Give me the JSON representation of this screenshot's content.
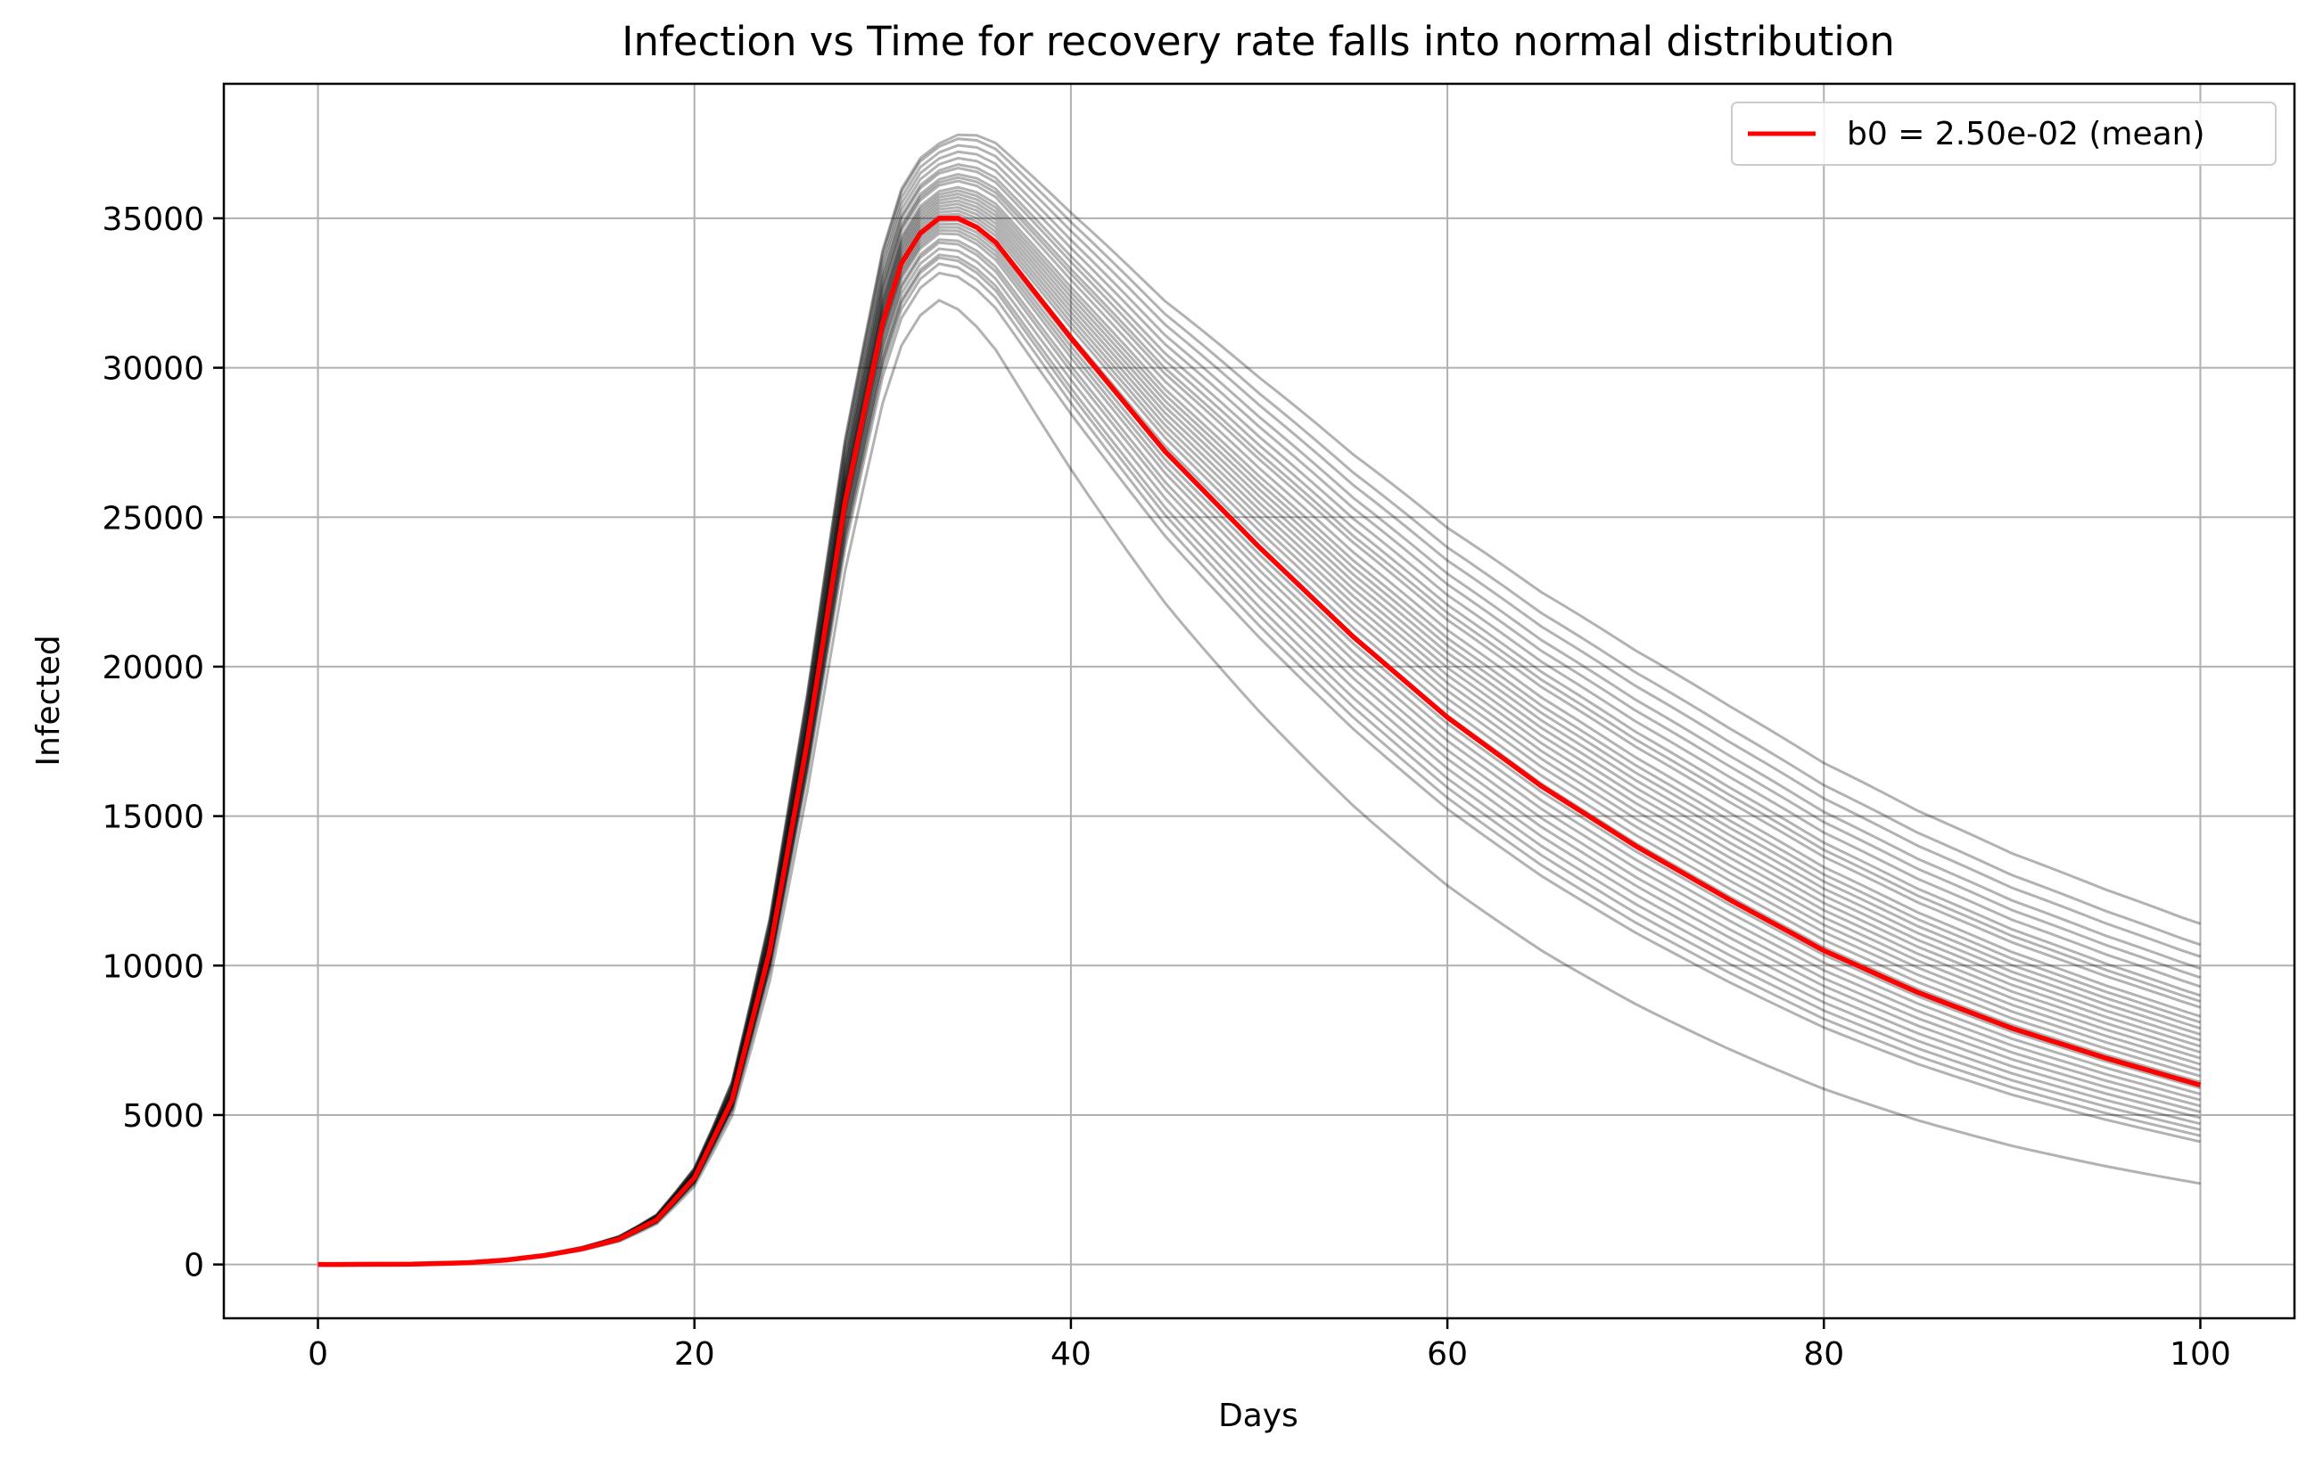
{
  "chart_data": {
    "type": "line",
    "title": "Infection vs Time for recovery rate falls into normal distribution",
    "xlabel": "Days",
    "ylabel": "Infected",
    "xlim": [
      -5,
      105
    ],
    "ylim": [
      -1800,
      39500
    ],
    "x_ticks": [
      0,
      20,
      40,
      60,
      80,
      100
    ],
    "y_ticks": [
      0,
      5000,
      10000,
      15000,
      20000,
      25000,
      30000,
      35000
    ],
    "grid": true,
    "legend": {
      "position": "top-right",
      "entries": [
        "b0 = 2.50e-02 (mean)"
      ]
    },
    "colors": {
      "mean_line": "#ff0000",
      "sample_lines": "#000000",
      "grid": "#b0b0b0"
    },
    "highlighted_series": {
      "name": "b0 = 2.50e-02 (mean)",
      "color": "#ff0000",
      "points": [
        [
          0,
          0
        ],
        [
          5,
          10
        ],
        [
          8,
          60
        ],
        [
          10,
          150
        ],
        [
          12,
          300
        ],
        [
          14,
          520
        ],
        [
          16,
          850
        ],
        [
          18,
          1500
        ],
        [
          20,
          2900
        ],
        [
          22,
          5500
        ],
        [
          24,
          10500
        ],
        [
          26,
          17500
        ],
        [
          28,
          25500
        ],
        [
          30,
          31500
        ],
        [
          31,
          33500
        ],
        [
          32,
          34500
        ],
        [
          33,
          35000
        ],
        [
          34,
          35000
        ],
        [
          35,
          34700
        ],
        [
          36,
          34200
        ],
        [
          38,
          32600
        ],
        [
          40,
          31000
        ],
        [
          45,
          27200
        ],
        [
          50,
          24000
        ],
        [
          55,
          21000
        ],
        [
          60,
          18300
        ],
        [
          65,
          16000
        ],
        [
          70,
          14000
        ],
        [
          75,
          12200
        ],
        [
          80,
          10500
        ],
        [
          85,
          9100
        ],
        [
          90,
          7900
        ],
        [
          95,
          6900
        ],
        [
          100,
          6000
        ]
      ]
    },
    "sample_series": {
      "count": 32,
      "color": "#000000",
      "opacity": 0.3,
      "peaks": [
        32300,
        33200,
        33500,
        33700,
        33800,
        34000,
        34200,
        34300,
        34500,
        34600,
        34700,
        34800,
        34900,
        35100,
        35200,
        35300,
        35400,
        35500,
        35600,
        35700,
        35800,
        35900,
        36100,
        36200,
        36300,
        36500,
        36600,
        36800,
        37000,
        37200,
        37400,
        37500
      ],
      "final_values": [
        2700,
        4100,
        4300,
        4500,
        4700,
        4900,
        5100,
        5300,
        5500,
        5700,
        5900,
        6100,
        6300,
        6500,
        6700,
        6900,
        7100,
        7300,
        7500,
        7700,
        7900,
        8100,
        8300,
        8600,
        8800,
        9000,
        9300,
        9600,
        9900,
        10300,
        10700,
        11400
      ]
    }
  }
}
